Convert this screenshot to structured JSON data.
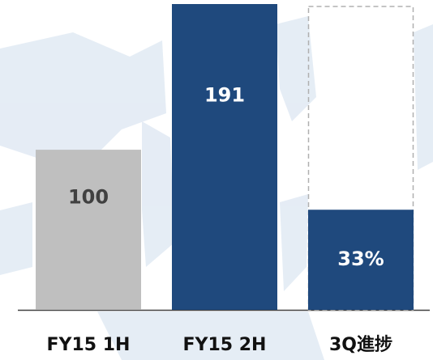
{
  "chart_data": {
    "type": "bar",
    "categories": [
      "FY15 1H",
      "FY15 2H",
      "3Q進捗"
    ],
    "values": [
      100,
      191,
      33
    ],
    "value_labels": [
      "100",
      "191",
      "33%"
    ],
    "colors": [
      "#bfbfbf",
      "#1f497d",
      "#1f497d"
    ],
    "label_colors": [
      "#404040",
      "#ffffff",
      "#ffffff"
    ],
    "value_axes": [
      "y",
      "y",
      "y2"
    ],
    "ylim": [
      0,
      191
    ],
    "y2lim": [
      0,
      100
    ],
    "target": 100
  }
}
